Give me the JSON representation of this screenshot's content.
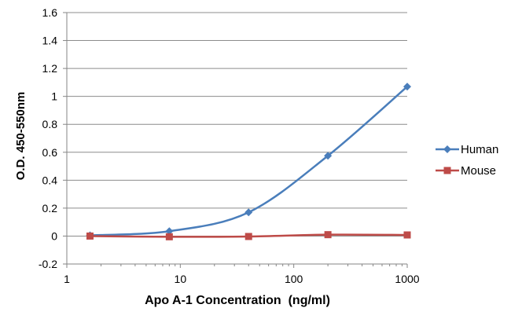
{
  "chart_data": {
    "type": "line",
    "title": "",
    "xlabel": "Apo A-1 Concentration  (ng/ml)",
    "ylabel": "O.D. 450-550nm",
    "xscale": "log",
    "xlim": [
      1,
      1000
    ],
    "ylim": [
      -0.2,
      1.6
    ],
    "yticks": [
      -0.2,
      0,
      0.2,
      0.4,
      0.6,
      0.8,
      1,
      1.2,
      1.4,
      1.6
    ],
    "ytick_labels": [
      "-0.2",
      "0",
      "0.2",
      "0.4",
      "0.6",
      "0.8",
      "1",
      "1.2",
      "1.4",
      "1.6"
    ],
    "xticks": [
      1,
      10,
      100,
      1000
    ],
    "xtick_labels": [
      "1",
      "10",
      "100",
      "1000"
    ],
    "grid": "horizontal",
    "legend": "right",
    "series": [
      {
        "name": "Human",
        "color": "#4a7ebb",
        "marker": "diamond",
        "x": [
          1.6,
          8,
          40,
          200,
          1000
        ],
        "y": [
          0.005,
          0.035,
          0.17,
          0.575,
          1.07
        ]
      },
      {
        "name": "Mouse",
        "color": "#be4b48",
        "marker": "square",
        "x": [
          1.6,
          8,
          40,
          200,
          1000
        ],
        "y": [
          0.0,
          -0.005,
          -0.003,
          0.01,
          0.008
        ]
      }
    ]
  }
}
